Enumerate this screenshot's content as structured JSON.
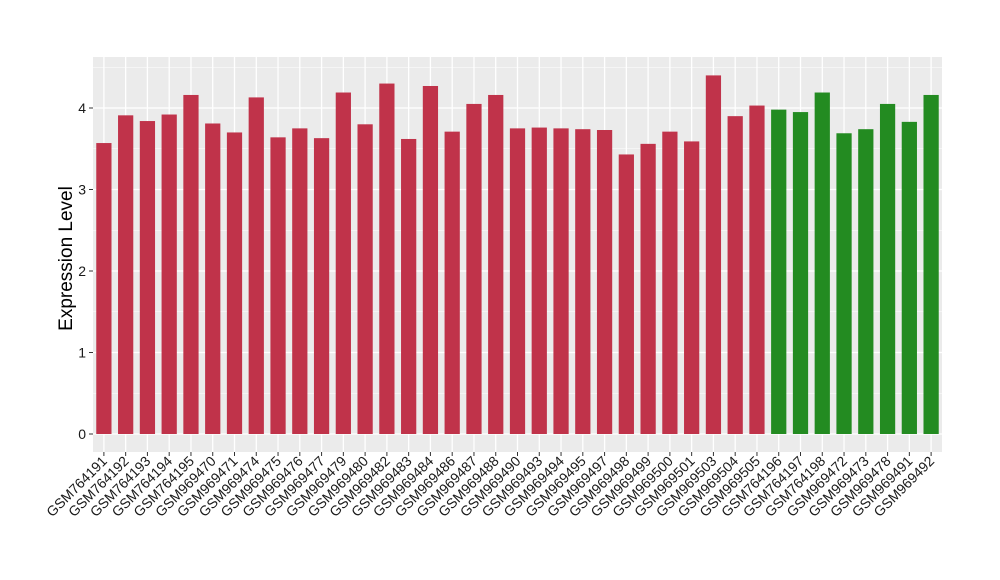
{
  "chart_data": {
    "type": "bar",
    "title": "",
    "xlabel": "",
    "ylabel": "Expression Level",
    "ylim": [
      0,
      4.6
    ],
    "yticks": [
      0,
      1,
      2,
      3,
      4
    ],
    "grid": true,
    "legend": "none",
    "colors": {
      "group1": "#c0334a",
      "group2": "#238b21",
      "panel": "#ebebeb",
      "grid": "#ffffff"
    },
    "categories": [
      "GSM764191",
      "GSM764192",
      "GSM764193",
      "GSM764194",
      "GSM764195",
      "GSM969470",
      "GSM969471",
      "GSM969474",
      "GSM969475",
      "GSM969476",
      "GSM969477",
      "GSM969479",
      "GSM969480",
      "GSM969482",
      "GSM969483",
      "GSM969484",
      "GSM969486",
      "GSM969487",
      "GSM969488",
      "GSM969490",
      "GSM969493",
      "GSM969494",
      "GSM969495",
      "GSM969497",
      "GSM969498",
      "GSM969499",
      "GSM969500",
      "GSM969501",
      "GSM969503",
      "GSM969504",
      "GSM969505",
      "GSM764196",
      "GSM764197",
      "GSM764198",
      "GSM969472",
      "GSM969473",
      "GSM969478",
      "GSM969491",
      "GSM969492"
    ],
    "values": [
      3.57,
      3.91,
      3.84,
      3.92,
      4.16,
      3.81,
      3.7,
      4.13,
      3.64,
      3.75,
      3.63,
      4.19,
      3.8,
      4.3,
      3.62,
      4.27,
      3.71,
      4.05,
      4.16,
      3.75,
      3.76,
      3.75,
      3.74,
      3.73,
      3.43,
      3.56,
      3.71,
      3.59,
      4.4,
      3.9,
      4.03,
      3.98,
      3.95,
      4.19,
      3.69,
      3.74,
      4.05,
      3.83,
      4.16
    ],
    "groups": [
      1,
      1,
      1,
      1,
      1,
      1,
      1,
      1,
      1,
      1,
      1,
      1,
      1,
      1,
      1,
      1,
      1,
      1,
      1,
      1,
      1,
      1,
      1,
      1,
      1,
      1,
      1,
      1,
      1,
      1,
      1,
      2,
      2,
      2,
      2,
      2,
      2,
      2,
      2
    ]
  }
}
